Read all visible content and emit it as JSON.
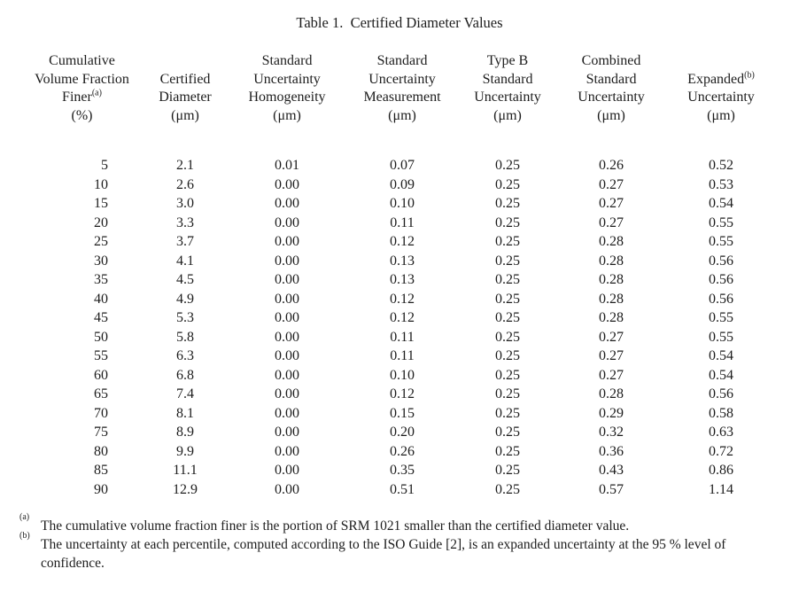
{
  "title": "Table 1.  Certified Diameter Values",
  "table": {
    "columns": [
      {
        "lines": [
          "Cumulative",
          "Volume Fraction",
          "Finer",
          "(%)"
        ],
        "sup": {
          "line": 2,
          "text": "(a)"
        }
      },
      {
        "lines": [
          "Certified",
          "Diameter",
          "(μm)"
        ]
      },
      {
        "lines": [
          "Standard",
          "Uncertainty",
          "Homogeneity",
          "(μm)"
        ]
      },
      {
        "lines": [
          "Standard",
          "Uncertainty",
          "Measurement",
          "(μm)"
        ]
      },
      {
        "lines": [
          "Type B",
          "Standard",
          "Uncertainty",
          "(μm)"
        ]
      },
      {
        "lines": [
          "Combined",
          "Standard",
          "Uncertainty",
          "(μm)"
        ]
      },
      {
        "lines": [
          "Expanded",
          "Uncertainty",
          "(μm)"
        ],
        "sup": {
          "line": 0,
          "text": "(b)"
        }
      }
    ],
    "rows": [
      [
        "5",
        "2.1",
        "0.01",
        "0.07",
        "0.25",
        "0.26",
        "0.52"
      ],
      [
        "10",
        "2.6",
        "0.00",
        "0.09",
        "0.25",
        "0.27",
        "0.53"
      ],
      [
        "15",
        "3.0",
        "0.00",
        "0.10",
        "0.25",
        "0.27",
        "0.54"
      ],
      [
        "20",
        "3.3",
        "0.00",
        "0.11",
        "0.25",
        "0.27",
        "0.55"
      ],
      [
        "25",
        "3.7",
        "0.00",
        "0.12",
        "0.25",
        "0.28",
        "0.55"
      ],
      [
        "30",
        "4.1",
        "0.00",
        "0.13",
        "0.25",
        "0.28",
        "0.56"
      ],
      [
        "35",
        "4.5",
        "0.00",
        "0.13",
        "0.25",
        "0.28",
        "0.56"
      ],
      [
        "40",
        "4.9",
        "0.00",
        "0.12",
        "0.25",
        "0.28",
        "0.56"
      ],
      [
        "45",
        "5.3",
        "0.00",
        "0.12",
        "0.25",
        "0.28",
        "0.55"
      ],
      [
        "50",
        "5.8",
        "0.00",
        "0.11",
        "0.25",
        "0.27",
        "0.55"
      ],
      [
        "55",
        "6.3",
        "0.00",
        "0.11",
        "0.25",
        "0.27",
        "0.54"
      ],
      [
        "60",
        "6.8",
        "0.00",
        "0.10",
        "0.25",
        "0.27",
        "0.54"
      ],
      [
        "65",
        "7.4",
        "0.00",
        "0.12",
        "0.25",
        "0.28",
        "0.56"
      ],
      [
        "70",
        "8.1",
        "0.00",
        "0.15",
        "0.25",
        "0.29",
        "0.58"
      ],
      [
        "75",
        "8.9",
        "0.00",
        "0.20",
        "0.25",
        "0.32",
        "0.63"
      ],
      [
        "80",
        "9.9",
        "0.00",
        "0.26",
        "0.25",
        "0.36",
        "0.72"
      ],
      [
        "85",
        "11.1",
        "0.00",
        "0.35",
        "0.25",
        "0.43",
        "0.86"
      ],
      [
        "90",
        "12.9",
        "0.00",
        "0.51",
        "0.25",
        "0.57",
        "1.14"
      ]
    ]
  },
  "footnotes": [
    {
      "marker": "(a)",
      "text": "The cumulative volume fraction finer is the portion of SRM 1021 smaller than the certified diameter value."
    },
    {
      "marker": "(b)",
      "text": "The uncertainty at each percentile, computed according to the ISO Guide [2], is an expanded uncertainty at the 95 % level of confidence."
    }
  ]
}
